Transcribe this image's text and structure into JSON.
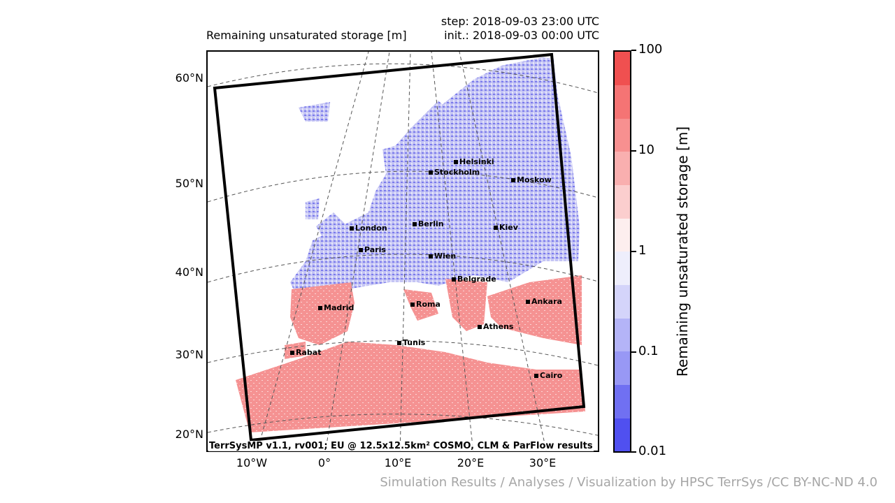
{
  "header": {
    "title": "Remaining unsaturated storage [m]",
    "step": "step: 2018-09-03 23:00 UTC",
    "init": "init.: 2018-09-03 00:00 UTC"
  },
  "map": {
    "lat_labels": [
      "60°N",
      "50°N",
      "40°N",
      "30°N",
      "20°N"
    ],
    "lon_labels": [
      "10°W",
      "0°",
      "10°E",
      "20°E",
      "30°E"
    ],
    "credit": "TerrSysMP v1.1, rv001; EU @ 12.5x12.5km² COSMO, CLM & ParFlow results",
    "cities": [
      "Helsinki",
      "Stockholm",
      "Moskow",
      "London",
      "Berlin",
      "Kiev",
      "Paris",
      "Wien",
      "Belgrade",
      "Madrid",
      "Roma",
      "Ankara",
      "Athens",
      "Tunis",
      "Rabat",
      "Cairo"
    ],
    "wet_color": "#8c8cee",
    "dry_color": "#f59090"
  },
  "colorbar": {
    "label": "Remaining unsaturated storage [m]",
    "ticks": [
      "100",
      "10",
      "1",
      "0.1",
      "0.01"
    ],
    "scale": "log",
    "colors": [
      "#5050f0",
      "#7070f2",
      "#9898f5",
      "#b4b4f7",
      "#d4d4fa",
      "#eeeefc",
      "#fdeeee",
      "#fbcece",
      "#f9afaf",
      "#f79090",
      "#f57474",
      "#f05050"
    ]
  },
  "footer": {
    "text": "Simulation Results / Analyses / Visualization by HPSC TerrSys /CC BY-NC-ND 4.0"
  }
}
